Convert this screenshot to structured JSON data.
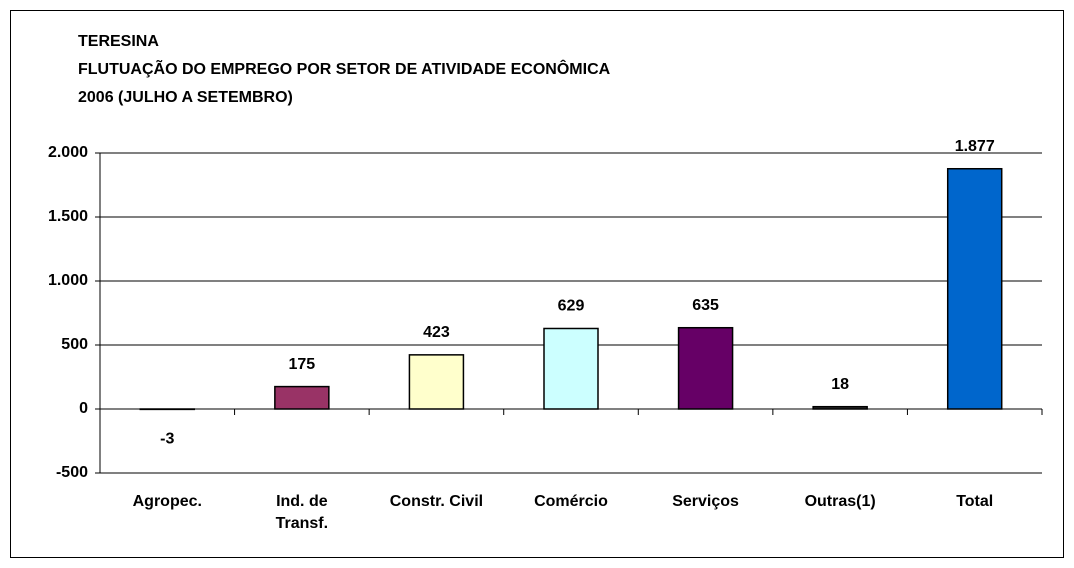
{
  "chart_data": {
    "type": "bar",
    "title": [
      "TERESINA",
      "FLUTUAÇÃO DO EMPREGO POR SETOR DE ATIVIDADE ECONÔMICA",
      "2006 (JULHO A SETEMBRO)"
    ],
    "categories": [
      "Agropec.",
      "Ind. de\nTransf.",
      "Constr. Civil",
      "Comércio",
      "Serviços",
      "Outras(1)",
      "Total"
    ],
    "values": [
      -3,
      175,
      423,
      629,
      635,
      18,
      1877
    ],
    "value_labels": [
      "-3",
      "175",
      "423",
      "629",
      "635",
      "18",
      "1.877"
    ],
    "colors": [
      "#993366",
      "#993366",
      "#ffffcc",
      "#ccffff",
      "#660066",
      "#333333",
      "#0066cc"
    ],
    "ylim": [
      -500,
      2000
    ],
    "yticks": [
      -500,
      0,
      500,
      {
        "value": 1000,
        "label": "1.000"
      },
      {
        "value": 1500,
        "label": "1.500"
      },
      {
        "value": 2000,
        "label": "2.000"
      }
    ],
    "grid": true
  }
}
